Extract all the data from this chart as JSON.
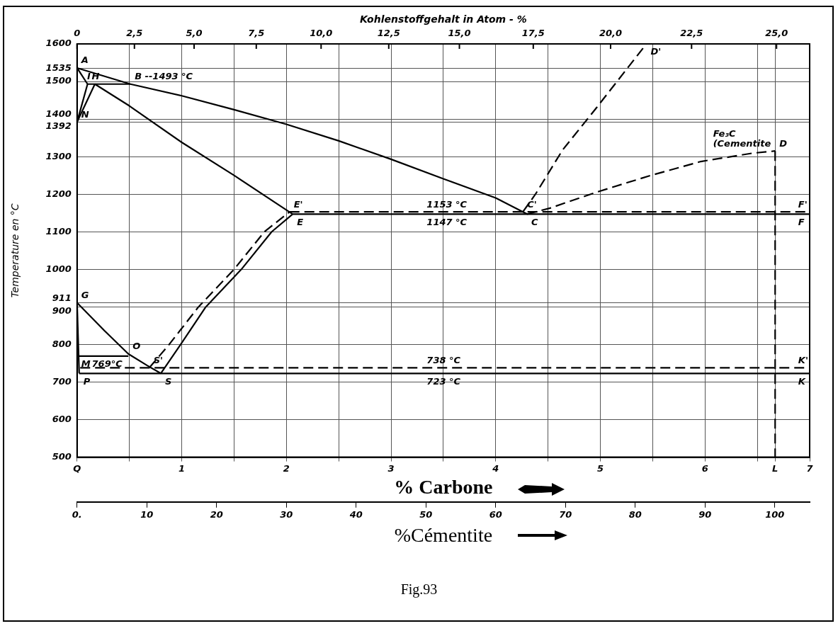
{
  "chart_data": {
    "type": "line",
    "xlabel": "% Carbone",
    "x2label": "%Cémentite",
    "ylabel": "Temperature en °C",
    "xlim": [
      0,
      7
    ],
    "xticks": [
      {
        "value": 0,
        "label": "Q"
      },
      {
        "value": 0.5,
        "label": null
      },
      1,
      {
        "value": 1.5,
        "label": null
      },
      2,
      {
        "value": 2.5,
        "label": null
      },
      3,
      {
        "value": 3.5,
        "label": null
      },
      4,
      {
        "value": 4.5,
        "label": null
      },
      5,
      {
        "value": 5.5,
        "label": null
      },
      6,
      {
        "value": 6.5,
        "label": null
      },
      {
        "value": 6.67,
        "label": "L"
      },
      7
    ],
    "x2lim": [
      0,
      105
    ],
    "x2ticks": [
      {
        "value": 0,
        "label": "0."
      },
      10,
      20,
      30,
      40,
      50,
      60,
      70,
      80,
      90,
      100
    ],
    "ylim": [
      500,
      1600
    ],
    "yticks": [
      500,
      600,
      700,
      800,
      900,
      911,
      1000,
      1100,
      1200,
      1300,
      1392,
      1400,
      1500,
      1535,
      1600
    ],
    "grid": true,
    "legend": false,
    "marker": "none",
    "series": [
      {
        "color": "#000000",
        "line_style": "solid",
        "x": [
          0,
          0.51,
          1.0,
          1.5,
          2.0,
          2.5,
          3.0,
          3.5,
          4.0,
          4.3
        ],
        "values": [
          1536,
          1493,
          1462,
          1425,
          1386,
          1342,
          1293,
          1241,
          1190,
          1147
        ]
      },
      {
        "color": "#000000",
        "line_style": "solid",
        "x": [
          0,
          0.1
        ],
        "values": [
          1536,
          1493
        ]
      },
      {
        "color": "#000000",
        "line_style": "solid",
        "x": [
          0.1,
          0.51
        ],
        "values": [
          1493,
          1493
        ]
      },
      {
        "color": "#000000",
        "line_style": "solid",
        "x": [
          0,
          0.1
        ],
        "values": [
          1392,
          1493
        ]
      },
      {
        "color": "#000000",
        "line_style": "solid",
        "x": [
          0,
          0.17
        ],
        "values": [
          1392,
          1493
        ]
      },
      {
        "color": "#000000",
        "line_style": "solid",
        "x": [
          0.17,
          0.5,
          1.0,
          1.5,
          2.06
        ],
        "values": [
          1493,
          1435,
          1338,
          1250,
          1147
        ]
      },
      {
        "color": "#000000",
        "line_style": "solid",
        "x": [
          2.06,
          7.0
        ],
        "values": [
          1147,
          1147
        ]
      },
      {
        "color": "#000000",
        "line_style": "dashed",
        "x": [
          2.03,
          7.0
        ],
        "values": [
          1153,
          1153
        ]
      },
      {
        "color": "#000000",
        "line_style": "dashed",
        "x": [
          4.26,
          4.38,
          4.64,
          4.96,
          5.44
        ],
        "values": [
          1153,
          1200,
          1318,
          1429,
          1600
        ]
      },
      {
        "color": "#000000",
        "line_style": "dashed",
        "x": [
          4.3,
          4.52,
          4.97,
          5.47,
          5.96,
          6.45,
          6.67
        ],
        "values": [
          1147,
          1163,
          1206,
          1249,
          1287,
          1309,
          1315
        ]
      },
      {
        "color": "#000000",
        "line_style": "dashed",
        "x": [
          6.67,
          6.67
        ],
        "values": [
          1315,
          500
        ]
      },
      {
        "color": "#000000",
        "line_style": "solid",
        "x": [
          0,
          0.26,
          0.49,
          0.67,
          0.8
        ],
        "values": [
          911,
          837,
          775,
          744,
          723
        ]
      },
      {
        "color": "#000000",
        "line_style": "solid",
        "x": [
          0.8,
          0.99,
          1.23,
          1.57,
          1.86,
          2.06
        ],
        "values": [
          723,
          800,
          900,
          1000,
          1100,
          1147
        ]
      },
      {
        "color": "#000000",
        "line_style": "dashed",
        "x": [
          0.69,
          0.88,
          1.16,
          1.5,
          1.79,
          2.03
        ],
        "values": [
          738,
          800,
          900,
          1000,
          1100,
          1153
        ]
      },
      {
        "color": "#000000",
        "line_style": "solid",
        "x": [
          0,
          0.02
        ],
        "values": [
          911,
          723
        ]
      },
      {
        "color": "#000000",
        "line_style": "solid",
        "x": [
          0.02,
          7.0
        ],
        "values": [
          723,
          723
        ]
      },
      {
        "color": "#000000",
        "line_style": "dashed",
        "x": [
          0.03,
          7.0
        ],
        "values": [
          738,
          738
        ]
      },
      {
        "color": "#000000",
        "line_style": "solid",
        "x": [
          0,
          0.49
        ],
        "values": [
          769,
          769
        ]
      }
    ],
    "annotations": [
      "Kohlenstoffgehalt in Atom - %",
      "0",
      "2,5",
      "5,0",
      "7,5",
      "10,0",
      "12,5",
      "15,0",
      "17,5",
      "20,0",
      "22,5",
      "25,0",
      {
        "text": "A",
        "x": 0,
        "y": 1536
      },
      {
        "text": "B --1493 °C",
        "x": 0.51,
        "y": 1493
      },
      {
        "text": "H",
        "x": 0.1,
        "y": 1493
      },
      {
        "text": "I",
        "x": 0.17,
        "y": 1493
      },
      {
        "text": "N",
        "x": 0,
        "y": 1392
      },
      {
        "text": "E'",
        "x": 2.03,
        "y": 1153
      },
      {
        "text": "E",
        "x": 2.06,
        "y": 1147
      },
      {
        "text": "1153 °C",
        "x": 3.3,
        "y": 1153
      },
      {
        "text": "1147 °C",
        "x": 3.3,
        "y": 1147
      },
      {
        "text": "C'",
        "x": 4.26,
        "y": 1153
      },
      {
        "text": "C",
        "x": 4.3,
        "y": 1147
      },
      {
        "text": "D'",
        "x": 5.44,
        "y": 1600
      },
      {
        "text": "D",
        "x": 6.67,
        "y": 1315
      },
      {
        "text": "Fe₃C (Cementite",
        "x": 6.67,
        "y": 1315
      },
      {
        "text": "F'",
        "x": 6.85,
        "y": 1153
      },
      {
        "text": "F",
        "x": 6.85,
        "y": 1147
      },
      {
        "text": "G",
        "x": 0,
        "y": 911
      },
      {
        "text": "M",
        "x": 0,
        "y": 769
      },
      {
        "text": "769°C",
        "x": 0.1,
        "y": 769
      },
      {
        "text": "O",
        "x": 0.49,
        "y": 775
      },
      {
        "text": "S'",
        "x": 0.69,
        "y": 738
      },
      {
        "text": "S",
        "x": 0.8,
        "y": 723
      },
      {
        "text": "P",
        "x": 0.02,
        "y": 723
      },
      {
        "text": "738 °C",
        "x": 3.3,
        "y": 738
      },
      {
        "text": "723 °C",
        "x": 3.3,
        "y": 723
      },
      {
        "text": "K'",
        "x": 6.85,
        "y": 738
      },
      {
        "text": "K",
        "x": 6.85,
        "y": 723
      },
      "Fig.93"
    ]
  }
}
